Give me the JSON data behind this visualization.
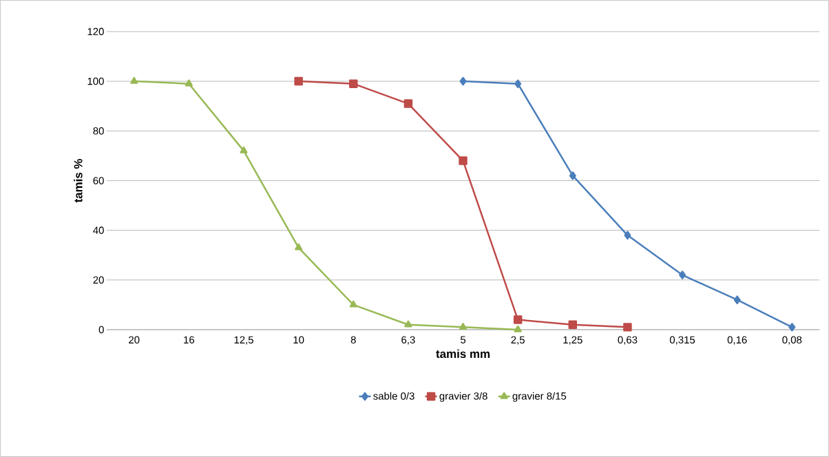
{
  "chart_data": {
    "type": "line",
    "xlabel": "tamis mm",
    "ylabel": "tamis %",
    "categories": [
      "20",
      "16",
      "12,5",
      "10",
      "8",
      "6,3",
      "5",
      "2,5",
      "1,25",
      "0,63",
      "0,315",
      "0,16",
      "0,08"
    ],
    "series": [
      {
        "name": "sable 0/3",
        "color": "#4a7ebb",
        "marker": "diamond",
        "values": [
          null,
          null,
          null,
          null,
          null,
          null,
          100,
          99,
          62,
          38,
          22,
          12,
          1
        ]
      },
      {
        "name": "gravier 3/8",
        "color": "#be4b48",
        "marker": "square",
        "values": [
          null,
          null,
          null,
          100,
          99,
          91,
          68,
          4,
          2,
          1,
          null,
          null,
          null
        ]
      },
      {
        "name": "gravier 8/15",
        "color": "#98b954",
        "marker": "triangle",
        "values": [
          100,
          99,
          72,
          33,
          10,
          2,
          1,
          0,
          null,
          null,
          null,
          null,
          null
        ]
      }
    ],
    "ylim": [
      0,
      120
    ],
    "yticks": [
      0,
      20,
      40,
      60,
      80,
      100,
      120
    ],
    "grid": "y",
    "legend": "bottom",
    "line_style": "solid"
  }
}
